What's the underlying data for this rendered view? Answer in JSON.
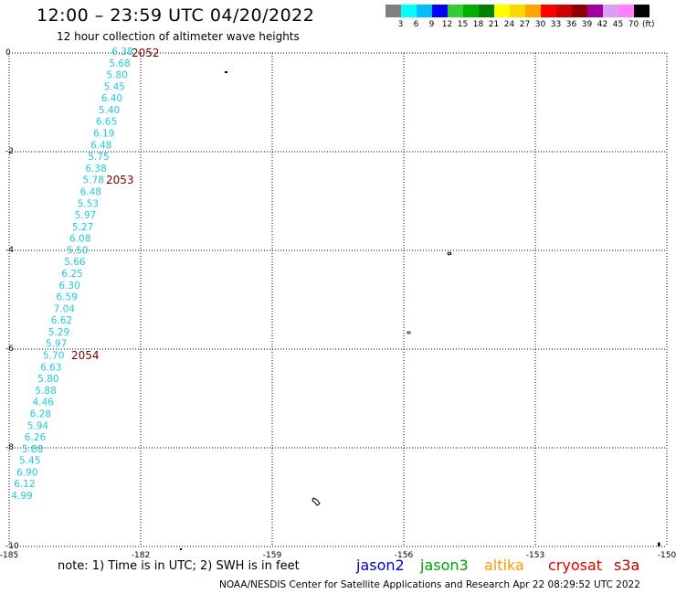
{
  "header": {
    "title": "12:00 – 23:59 UTC 04/20/2022",
    "subtitle": "12 hour collection of altimeter wave heights"
  },
  "legend": {
    "unit": "(ft)",
    "bins": [
      {
        "label": "3",
        "color": "#808080"
      },
      {
        "label": "6",
        "color": "#00ffff"
      },
      {
        "label": "9",
        "color": "#00bfff"
      },
      {
        "label": "12",
        "color": "#0000ff"
      },
      {
        "label": "15",
        "color": "#32cd32"
      },
      {
        "label": "18",
        "color": "#00b000"
      },
      {
        "label": "21",
        "color": "#008000"
      },
      {
        "label": "24",
        "color": "#ffff00"
      },
      {
        "label": "27",
        "color": "#ffd700"
      },
      {
        "label": "30",
        "color": "#ffa500"
      },
      {
        "label": "33",
        "color": "#ff0000"
      },
      {
        "label": "36",
        "color": "#cc0000"
      },
      {
        "label": "39",
        "color": "#8b0000"
      },
      {
        "label": "42",
        "color": "#a000a0"
      },
      {
        "label": "45",
        "color": "#d8a0f0"
      },
      {
        "label": "70",
        "color": "#ff80ff"
      },
      {
        "label": "",
        "color": "#000000"
      }
    ]
  },
  "map": {
    "lon_ticks": [
      "-185",
      "-182",
      "-159",
      "-156",
      "-153",
      "-150"
    ],
    "lat_ticks": [
      "0",
      "-2",
      "-4",
      "-6",
      "-8",
      "-10"
    ],
    "track_color": "#22c8e0",
    "time_label_color": "#7a0000",
    "wave_heights_ft": [
      "6.38",
      "5.68",
      "5.80",
      "5.45",
      "6.40",
      "5.40",
      "6.65",
      "6.19",
      "6.48",
      "5.75",
      "6.38",
      "5.78",
      "6.48",
      "5.53",
      "5.97",
      "5.27",
      "6.08",
      "5.50",
      "5.66",
      "6.25",
      "6.30",
      "6.59",
      "7.04",
      "6.62",
      "5.29",
      "5.97",
      "5.70",
      "6.63",
      "5.80",
      "5.88",
      "4.46",
      "6.28",
      "5.94",
      "6.26",
      "5.88",
      "5.45",
      "6.90",
      "6.12",
      "4.99"
    ],
    "time_labels": [
      "2052",
      "2053",
      "2054"
    ]
  },
  "footer": {
    "note": "note:  1) Time is in UTC;  2) SWH is in feet",
    "satellites": [
      {
        "name": "jason2",
        "color": "#0000cc"
      },
      {
        "name": "jason3",
        "color": "#00a000"
      },
      {
        "name": "altika",
        "color": "#ff9900"
      },
      {
        "name": "cryosat",
        "color": "#dd0000"
      },
      {
        "name": "s3a",
        "color": "#bb0000"
      }
    ],
    "credit": "NOAA/NESDIS Center for Satellite Applications and Research     Apr 22 08:29:52 UTC 2022"
  }
}
